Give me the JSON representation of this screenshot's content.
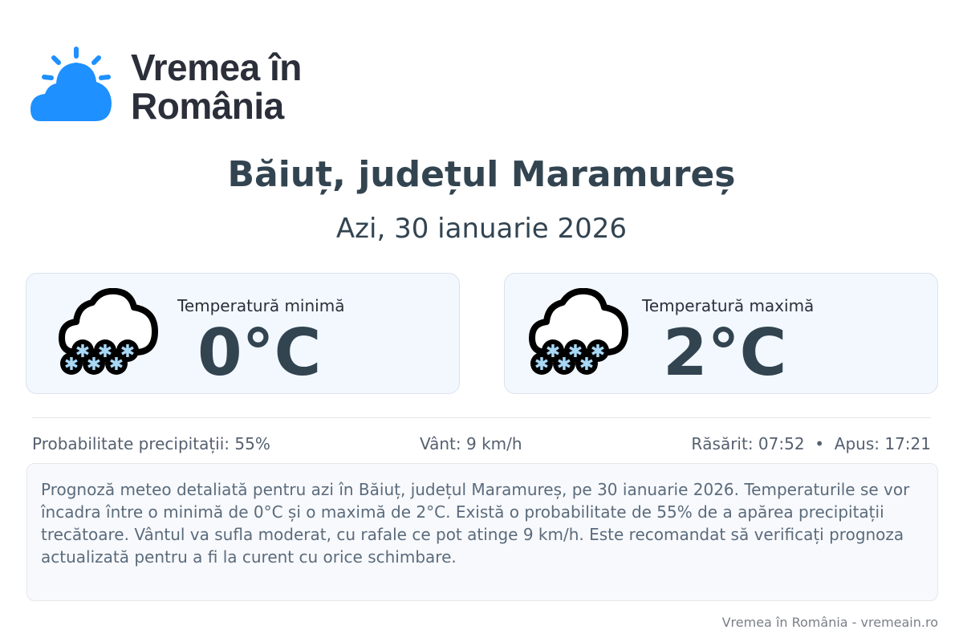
{
  "header": {
    "logo_text_line1": "Vremea în",
    "logo_text_line2": "România",
    "logo_icon": "sun-behind-cloud-icon",
    "brand_color": "#1e90ff"
  },
  "location": {
    "title": "Băiuț, județul Maramureș",
    "date": "Azi, 30 ianuarie 2026"
  },
  "cards": [
    {
      "label": "Temperatură minimă",
      "value": "0°C",
      "icon": "snow-cloud-icon"
    },
    {
      "label": "Temperatură maximă",
      "value": "2°C",
      "icon": "snow-cloud-icon"
    }
  ],
  "stats": {
    "precipitation": "Probabilitate precipitații: 55%",
    "wind": "Vânt: 9 km/h",
    "sun": "Răsărit: 07:52  •  Apus: 17:21"
  },
  "description": "Prognoză meteo detaliată pentru azi în Băiuț, județul Maramureș, pe 30 ianuarie 2026. Temperaturile se vor încadra între o minimă de 0°C și o maximă de 2°C. Există o probabilitate de 55% de a apărea precipitații trecătoare. Vântul va sufla moderat, cu rafale ce pot atinge 9 km/h. Este recomandat să verificați prognoza actualizată pentru a fi la curent cu orice schimbare.",
  "footer": "Vremea în România - vremeain.ro"
}
